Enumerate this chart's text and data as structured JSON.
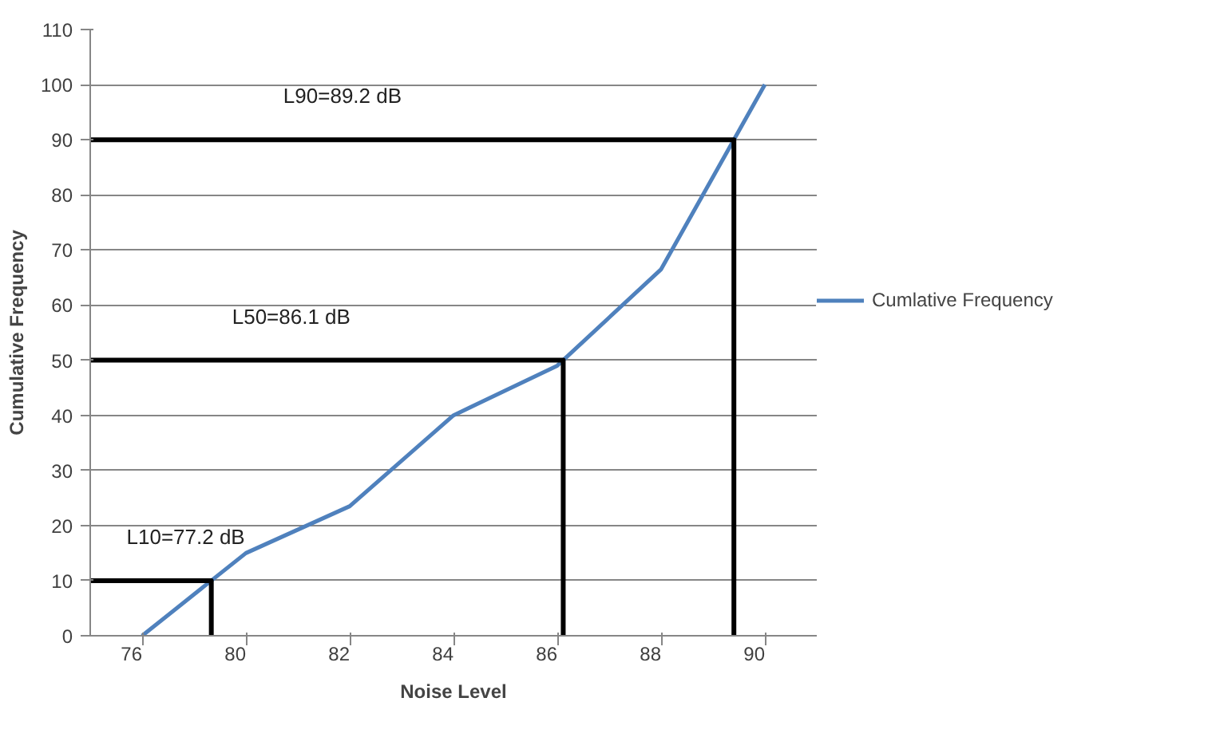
{
  "chart_data": {
    "type": "line",
    "xlabel": "Noise Level",
    "ylabel": "Cumulative Frequency",
    "categories": [
      "76",
      "80",
      "82",
      "84",
      "86",
      "88",
      "90"
    ],
    "ylim": [
      0,
      110
    ],
    "yticks": [
      0,
      10,
      20,
      30,
      40,
      50,
      60,
      70,
      80,
      90,
      100,
      110
    ],
    "grid": "y",
    "legend": "right",
    "line_style": "solid",
    "series": [
      {
        "name": "Cumlative Frequency",
        "color": "#4f81bd",
        "values": [
          0,
          15,
          23.5,
          40,
          49,
          66.5,
          100
        ]
      }
    ],
    "ref_lines": [
      {
        "axis": "y",
        "value": 10,
        "label": "L10=77.2 dB",
        "color": "#000000"
      },
      {
        "axis": "y",
        "value": 50,
        "label": "L50=86.1 dB",
        "color": "#000000"
      },
      {
        "axis": "y",
        "value": 90,
        "label": "L90=89.2 dB",
        "color": "#000000"
      }
    ]
  }
}
